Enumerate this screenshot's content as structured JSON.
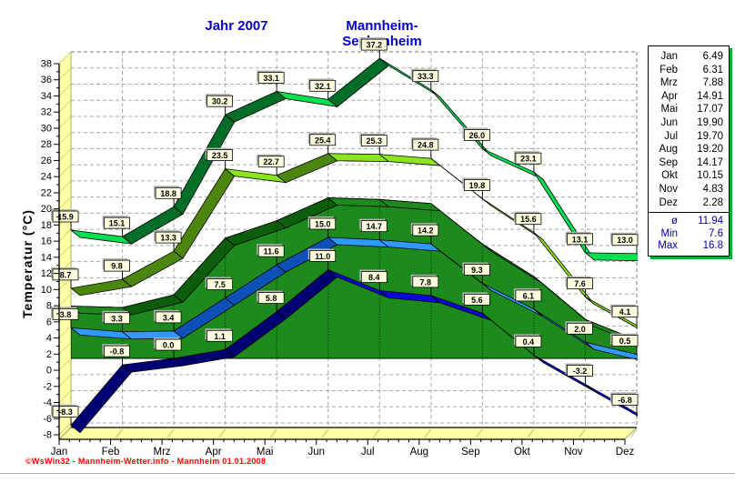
{
  "title": {
    "year_label": "Jahr  2007",
    "station": "Mannheim-Seckenheim"
  },
  "footer": {
    "credit": "©WsWin32 - Mannheim-Wetter.info - Mannheim  01.01.2008"
  },
  "legend": {
    "rows": [
      {
        "label": "Jan",
        "value": "6.49"
      },
      {
        "label": "Feb",
        "value": "6.31"
      },
      {
        "label": "Mrz",
        "value": "7.88"
      },
      {
        "label": "Apr",
        "value": "14.91"
      },
      {
        "label": "Mai",
        "value": "17.07"
      },
      {
        "label": "Jun",
        "value": "19.90"
      },
      {
        "label": "Jul",
        "value": "19.70"
      },
      {
        "label": "Aug",
        "value": "19.20"
      },
      {
        "label": "Sep",
        "value": "14.17"
      },
      {
        "label": "Okt",
        "value": "10.15"
      },
      {
        "label": "Nov",
        "value": "4.83"
      },
      {
        "label": "Dez",
        "value": "2.28"
      }
    ],
    "stats": [
      {
        "label": "ø",
        "value": "11.94"
      },
      {
        "label": "Min",
        "value": "7.6"
      },
      {
        "label": "Max",
        "value": "16.8"
      }
    ]
  },
  "chart_data": {
    "type": "line",
    "title": "Jahr 2007 Mannheim-Seckenheim",
    "ylabel": "Temperatur  (°C)",
    "xlabel": "",
    "ylim": [
      -8,
      38
    ],
    "ytick_step": 2,
    "grid": true,
    "legend_position": "right",
    "categories": [
      "Jan",
      "Feb",
      "Mrz",
      "Apr",
      "Mai",
      "Jun",
      "Jul",
      "Aug",
      "Sep",
      "Okt",
      "Nov",
      "Dez"
    ],
    "series": [
      {
        "name": "absolute-max",
        "style": "ribbon",
        "labels": true,
        "color": "#00e050",
        "dark": "#006e28",
        "values": [
          15.9,
          15.1,
          18.8,
          30.2,
          33.1,
          32.1,
          37.2,
          33.3,
          26.0,
          23.1,
          13.1,
          13.0
        ]
      },
      {
        "name": "mean-max",
        "style": "ribbon",
        "labels": true,
        "color": "#8ae61c",
        "dark": "#4c860e",
        "values": [
          8.7,
          9.8,
          13.3,
          23.5,
          22.7,
          25.4,
          25.3,
          24.8,
          19.8,
          15.6,
          7.6,
          4.1
        ]
      },
      {
        "name": "monthly-mean",
        "style": "area",
        "labels": false,
        "color": "#1d8a1d",
        "dark": "#0c5e0c",
        "values": [
          6.49,
          6.31,
          7.88,
          14.91,
          17.07,
          19.9,
          19.7,
          19.2,
          14.17,
          10.15,
          4.83,
          2.28
        ]
      },
      {
        "name": "mean-min",
        "style": "ribbon",
        "labels": true,
        "color": "#2e9aff",
        "dark": "#0d50b8",
        "values": [
          3.8,
          3.3,
          3.4,
          7.5,
          11.6,
          15.0,
          14.7,
          14.2,
          9.3,
          6.1,
          2.0,
          0.5
        ]
      },
      {
        "name": "absolute-min",
        "style": "ribbon",
        "labels": true,
        "color": "#0a0ad8",
        "dark": "#000074",
        "values": [
          -8.3,
          -0.8,
          0.0,
          1.1,
          5.8,
          11.0,
          8.4,
          7.8,
          5.6,
          0.4,
          -3.2,
          -6.8
        ]
      }
    ],
    "annotations": {
      "label_box_color": "#ffffe0",
      "wall_color": "#ffffa8",
      "mean_annual": 11.94,
      "mean_min_annual": 7.6,
      "mean_max_annual": 16.8
    }
  }
}
